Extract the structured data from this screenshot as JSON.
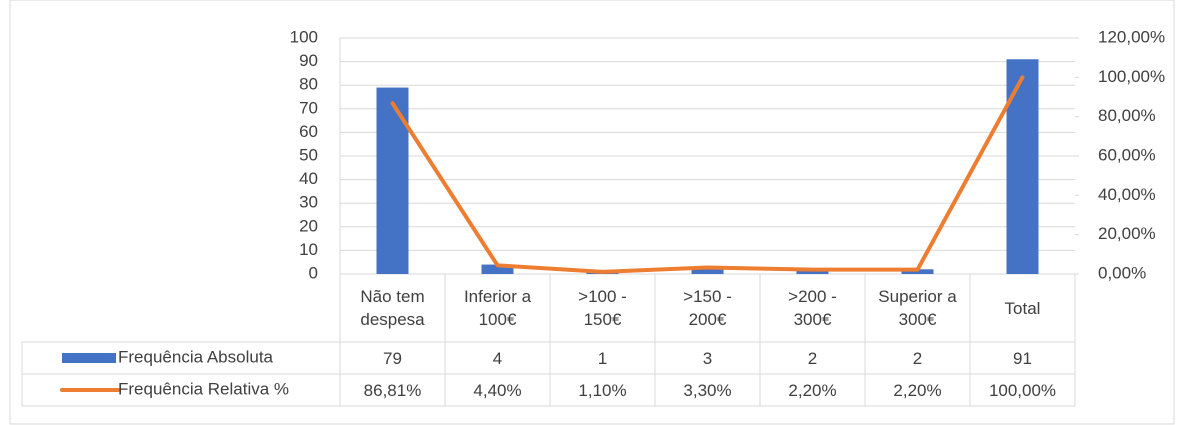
{
  "chart_data": {
    "type": "bar_line",
    "categories": [
      "Não tem despesa",
      "Inferior a 100€",
      ">100 - 150€",
      ">150 - 200€",
      ">200 - 300€",
      "Superior a 300€",
      "Total"
    ],
    "series": [
      {
        "name": "Frequência Absoluta",
        "type": "bar",
        "color": "#4472c4",
        "values": [
          79,
          4,
          1,
          3,
          2,
          2,
          91
        ]
      },
      {
        "name": "Frequência Relativa %",
        "type": "line",
        "axis": "y2",
        "color": "#ed7d31",
        "values": [
          86.81,
          4.4,
          1.1,
          3.3,
          2.2,
          2.2,
          100.0
        ],
        "value_labels": [
          "86,81%",
          "4,40%",
          "1,10%",
          "3,30%",
          "2,20%",
          "2,20%",
          "100,00%"
        ]
      }
    ],
    "ylim": [
      0,
      100
    ],
    "yticks": [
      0,
      10,
      20,
      30,
      40,
      50,
      60,
      70,
      80,
      90,
      100
    ],
    "y2lim": [
      0,
      120
    ],
    "y2ticks": [
      {
        "value": 0,
        "label": "0,00%"
      },
      {
        "value": 20,
        "label": "20,00%"
      },
      {
        "value": 40,
        "label": "40,00%"
      },
      {
        "value": 60,
        "label": "60,00%"
      },
      {
        "value": 80,
        "label": "80,00%"
      },
      {
        "value": 100,
        "label": "100,00%"
      },
      {
        "value": 120,
        "label": "120,00%"
      }
    ],
    "grid": true
  }
}
